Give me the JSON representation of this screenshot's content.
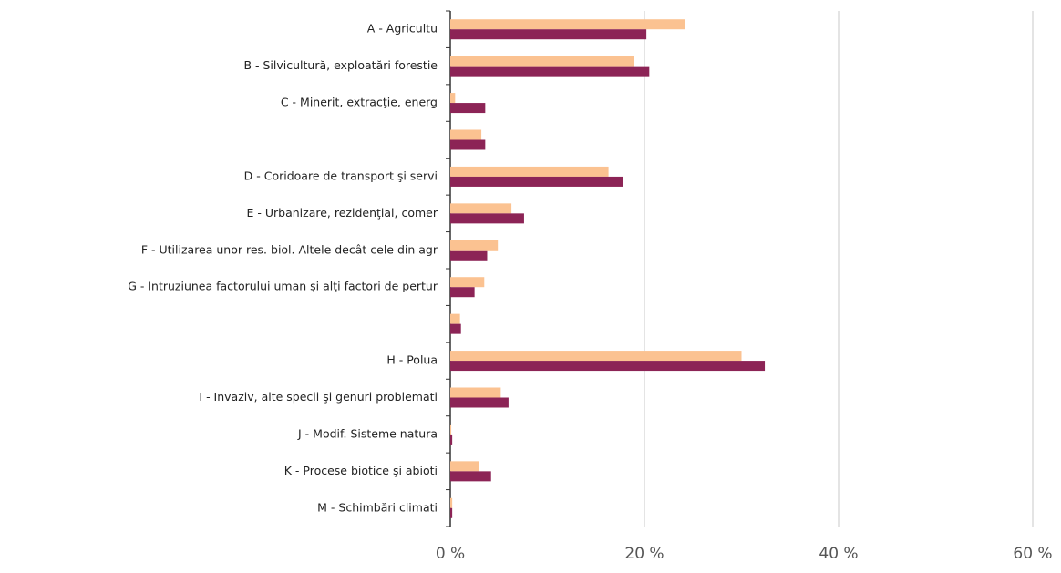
{
  "chart_data": {
    "type": "hbar",
    "categories": [
      "A - Agricultu",
      "B - Silvicultură, exploatări forestie",
      "C - Minerit, extracţie, energ",
      null,
      "D - Coridoare de transport şi servi",
      "E - Urbanizare, rezidenţial, comer",
      "F - Utilizarea unor res. biol. Altele decât cele din agr",
      "G - Intruziunea factorului uman şi alţi factori de pertur",
      null,
      "H - Polua",
      "I - Invaziv, alte specii şi genuri problemati",
      "J - Modif. Sisteme natura",
      "K - Procese biotice şi abioti",
      "M - Schimbări climati"
    ],
    "series": [
      {
        "color": "#fbc291",
        "values": [
          24.2,
          18.9,
          0.5,
          3.2,
          16.3,
          6.3,
          4.9,
          3.5,
          1.0,
          30.0,
          5.2,
          0.1,
          3.0,
          0.2
        ]
      },
      {
        "color": "#8c2456",
        "values": [
          20.2,
          20.5,
          3.6,
          3.6,
          17.8,
          7.6,
          3.8,
          2.5,
          1.1,
          32.4,
          6.0,
          0.2,
          4.2,
          0.2
        ]
      }
    ],
    "xlim": [
      0,
      60
    ],
    "xticks": [
      {
        "value": 0,
        "label": "0 %"
      },
      {
        "value": 20,
        "label": "20 %"
      },
      {
        "value": 40,
        "label": "40 %"
      },
      {
        "value": 60,
        "label": "60 %"
      }
    ],
    "grid": true
  }
}
